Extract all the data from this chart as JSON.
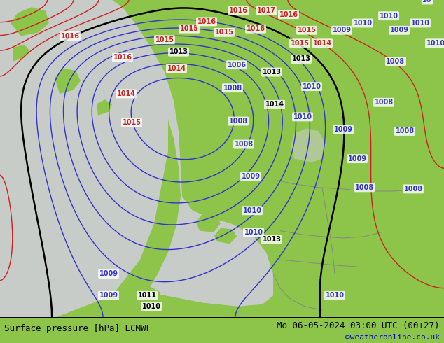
{
  "title_left": "Surface pressure [hPa] ECMWF",
  "title_right": "Mo 06-05-2024 03:00 UTC (00+27)",
  "copyright": "©weatheronline.co.uk",
  "bg_green": "#8dc44a",
  "sea_gray": "#c8ccc8",
  "low_fill": "#c8ccd4",
  "contour_blue": "#3333cc",
  "contour_red": "#cc2222",
  "contour_black": "#000000",
  "contour_gray": "#888888",
  "bottom_bg": "#8dc44a",
  "text_color": "#000000",
  "copyright_color": "#0000cc",
  "figsize": [
    6.34,
    4.9
  ],
  "dpi": 100
}
